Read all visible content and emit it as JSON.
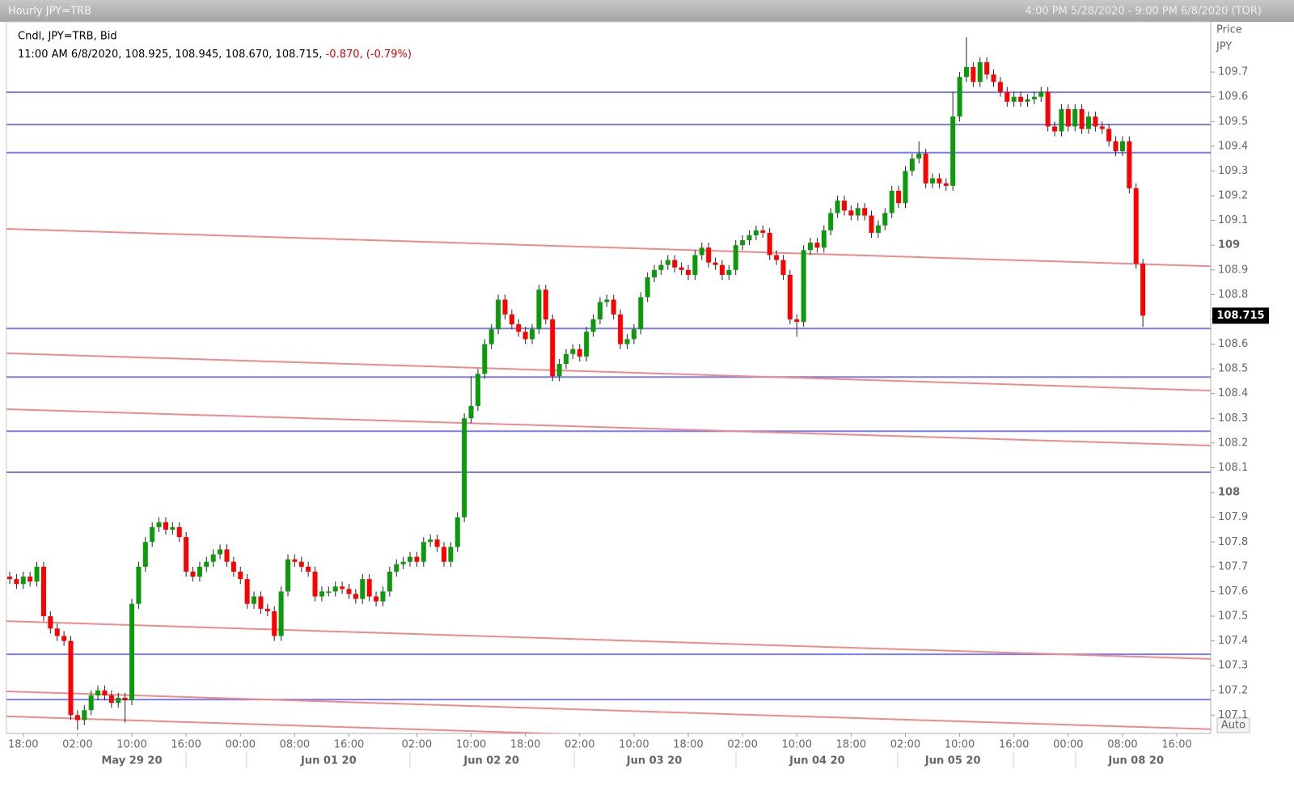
{
  "header": {
    "title": "Hourly JPY=TRB",
    "range": "4:00 PM 5/28/2020 - 9:00 PM 6/8/2020 (TOR)"
  },
  "chart_data": {
    "type": "candlestick",
    "info": {
      "label": "Cndl, JPY=TRB, Bid",
      "quote": "11:00 AM 6/8/2020, 108.925, 108.945, 108.670, 108.715,",
      "change": "-0.870, (-0.79%)"
    },
    "ylabel": "Price",
    "yunit": "JPY",
    "auto_button": "Auto",
    "up_color": "#0a9a0a",
    "down_color": "#ff0000",
    "ylim": [
      107.026,
      109.903
    ],
    "yticks": [
      107.1,
      107.2,
      107.3,
      107.4,
      107.5,
      107.6,
      107.7,
      107.8,
      107.9,
      108,
      108.1,
      108.2,
      108.3,
      108.4,
      108.5,
      108.6,
      108.7,
      108.8,
      108.9,
      109,
      109.1,
      109.2,
      109.3,
      109.4,
      109.5,
      109.6,
      109.7
    ],
    "last_price": 108.715,
    "horizontal_lines": {
      "color": "#7b7bef",
      "values": [
        109.618,
        109.488,
        109.374,
        108.663,
        108.467,
        108.248,
        108.082,
        107.346,
        107.163
      ]
    },
    "trend_lines": {
      "color": "#f08a8a",
      "lines": [
        {
          "start": 109.066,
          "end": 108.915
        },
        {
          "start": 108.563,
          "end": 108.412
        },
        {
          "start": 108.337,
          "end": 108.19
        },
        {
          "start": 107.48,
          "end": 107.327
        },
        {
          "start": 107.196,
          "end": 107.043
        },
        {
          "start": 107.095,
          "end": 106.941
        }
      ]
    },
    "categories": [
      null,
      null,
      "18:00",
      null,
      null,
      null,
      null,
      null,
      null,
      null,
      "02:00",
      null,
      null,
      null,
      null,
      null,
      null,
      null,
      "10:00",
      null,
      null,
      null,
      null,
      null,
      null,
      null,
      "16:00",
      null,
      null,
      null,
      null,
      null,
      null,
      null,
      "00:00",
      null,
      null,
      null,
      null,
      null,
      null,
      null,
      "08:00",
      null,
      null,
      null,
      null,
      null,
      null,
      null,
      "16:00",
      null,
      null,
      null,
      null,
      null,
      null,
      null,
      null,
      null,
      "02:00",
      null,
      null,
      null,
      null,
      null,
      null,
      null,
      "10:00",
      null,
      null,
      null,
      null,
      null,
      null,
      null,
      "18:00",
      null,
      null,
      null,
      null,
      null,
      null,
      null,
      "02:00",
      null,
      null,
      null,
      null,
      null,
      null,
      null,
      "10:00",
      null,
      null,
      null,
      null,
      null,
      null,
      null,
      "18:00",
      null,
      null,
      null,
      null,
      null,
      null,
      null,
      "02:00",
      null,
      null,
      null,
      null,
      null,
      null,
      null,
      "10:00",
      null,
      null,
      null,
      null,
      null,
      null,
      null,
      "18:00",
      null,
      null,
      null,
      null,
      null,
      null,
      null,
      "02:00",
      null,
      null,
      null,
      null,
      null,
      null,
      null,
      "10:00",
      null,
      null,
      null,
      null,
      null,
      null,
      null,
      "16:00",
      null,
      null,
      null,
      null,
      null,
      null,
      null,
      "00:00",
      null,
      null,
      null,
      null,
      null,
      null,
      null,
      "08:00",
      null,
      null,
      null,
      null,
      null,
      null,
      null,
      "16:00",
      null,
      null,
      null,
      null,
      null
    ],
    "day_labels": [
      null,
      null,
      null,
      null,
      null,
      null,
      null,
      null,
      null,
      null,
      null,
      null,
      null,
      null,
      null,
      null,
      null,
      null,
      "May 29 20",
      null,
      null,
      null,
      null,
      null,
      null,
      null,
      null,
      null,
      null,
      null,
      null,
      null,
      null,
      null,
      null,
      null,
      null,
      null,
      null,
      null,
      null,
      null,
      null,
      null,
      null,
      null,
      null,
      "Jun 01 20",
      null,
      null,
      null,
      null,
      null,
      null,
      null,
      null,
      null,
      null,
      null,
      null,
      null,
      null,
      null,
      null,
      null,
      null,
      null,
      null,
      null,
      null,
      null,
      "Jun 02 20",
      null,
      null,
      null,
      null,
      null,
      null,
      null,
      null,
      null,
      null,
      null,
      null,
      null,
      null,
      null,
      null,
      null,
      null,
      null,
      null,
      null,
      null,
      null,
      "Jun 03 20",
      null,
      null,
      null,
      null,
      null,
      null,
      null,
      null,
      null,
      null,
      null,
      null,
      null,
      null,
      null,
      null,
      null,
      null,
      null,
      null,
      null,
      null,
      null,
      "Jun 04 20",
      null,
      null,
      null,
      null,
      null,
      null,
      null,
      null,
      null,
      null,
      null,
      null,
      null,
      null,
      null,
      null,
      null,
      null,
      null,
      "Jun 05 20",
      null,
      null,
      null,
      null,
      null,
      null,
      null,
      null,
      null,
      null,
      null,
      null,
      null,
      null,
      null,
      null,
      null,
      null,
      null,
      null,
      null,
      null,
      null,
      null,
      null,
      null,
      "Jun 08 20",
      null,
      null,
      null,
      null,
      null,
      null,
      null,
      null,
      null,
      null
    ],
    "open": [
      107.66,
      107.65,
      107.63,
      107.66,
      107.64,
      107.7,
      107.5,
      107.45,
      107.42,
      107.4,
      107.1,
      107.08,
      107.12,
      107.18,
      107.2,
      107.18,
      107.15,
      107.17,
      107.16,
      107.55,
      107.7,
      107.8,
      107.86,
      107.88,
      107.85,
      107.86,
      107.82,
      107.68,
      107.66,
      107.7,
      107.72,
      107.75,
      107.77,
      107.72,
      107.68,
      107.65,
      107.55,
      107.58,
      107.53,
      107.52,
      107.42,
      107.6,
      107.73,
      107.72,
      107.7,
      107.68,
      107.58,
      107.6,
      107.6,
      107.62,
      107.61,
      107.59,
      107.57,
      107.65,
      107.58,
      107.56,
      107.6,
      107.68,
      107.71,
      107.72,
      107.74,
      107.72,
      107.8,
      107.81,
      107.78,
      107.72,
      107.78,
      107.9,
      108.3,
      108.35,
      108.48,
      108.6,
      108.66,
      108.78,
      108.72,
      108.68,
      108.65,
      108.62,
      108.66,
      108.82,
      108.7,
      108.47,
      108.52,
      108.56,
      108.58,
      108.55,
      108.65,
      108.7,
      108.77,
      108.78,
      108.72,
      108.6,
      108.62,
      108.66,
      108.79,
      108.87,
      108.9,
      108.92,
      108.94,
      108.91,
      108.9,
      108.88,
      108.96,
      108.99,
      108.93,
      108.92,
      108.88,
      108.9,
      109.0,
      109.02,
      109.04,
      109.06,
      109.05,
      108.96,
      108.94,
      108.88,
      108.7,
      108.69,
      108.98,
      109.01,
      108.99,
      109.06,
      109.13,
      109.18,
      109.14,
      109.12,
      109.15,
      109.12,
      109.05,
      109.08,
      109.13,
      109.22,
      109.17,
      109.3,
      109.35,
      109.37,
      109.25,
      109.27,
      109.25,
      109.24,
      109.52,
      109.68,
      109.72,
      109.66,
      109.74,
      109.69,
      109.66,
      109.62,
      109.58,
      109.6,
      109.58,
      109.59,
      109.6,
      109.62,
      109.48,
      109.46,
      109.55,
      109.48,
      109.55,
      109.47,
      109.52,
      109.48,
      109.47,
      109.42,
      109.38,
      109.42,
      109.23,
      108.925,
      null,
      null,
      null,
      null,
      null,
      null,
      null,
      null,
      null,
      null
    ],
    "high": [
      107.68,
      107.67,
      107.68,
      107.68,
      107.72,
      107.72,
      107.52,
      107.47,
      107.44,
      107.42,
      107.12,
      107.14,
      107.2,
      107.22,
      107.22,
      107.2,
      107.19,
      107.19,
      107.57,
      107.72,
      107.82,
      107.88,
      107.9,
      107.9,
      107.88,
      107.88,
      107.84,
      107.7,
      107.72,
      107.74,
      107.77,
      107.79,
      107.79,
      107.74,
      107.7,
      107.67,
      107.6,
      107.6,
      107.55,
      107.54,
      107.62,
      107.75,
      107.75,
      107.74,
      107.72,
      107.7,
      107.62,
      107.62,
      107.64,
      107.64,
      107.63,
      107.61,
      107.67,
      107.67,
      107.6,
      107.62,
      107.7,
      107.73,
      107.74,
      107.76,
      107.76,
      107.82,
      107.83,
      107.83,
      107.8,
      107.8,
      107.92,
      108.32,
      108.47,
      108.5,
      108.62,
      108.68,
      108.8,
      108.8,
      108.74,
      108.7,
      108.67,
      108.68,
      108.84,
      108.84,
      108.72,
      108.54,
      108.58,
      108.6,
      108.6,
      108.67,
      108.72,
      108.79,
      108.8,
      108.8,
      108.74,
      108.64,
      108.68,
      108.81,
      108.89,
      108.92,
      108.94,
      108.96,
      108.96,
      108.93,
      108.92,
      108.98,
      109.01,
      109.01,
      108.95,
      108.94,
      108.92,
      109.02,
      109.04,
      109.06,
      109.08,
      109.08,
      109.07,
      108.98,
      108.96,
      108.9,
      108.72,
      109.0,
      109.03,
      109.03,
      109.08,
      109.15,
      109.2,
      109.2,
      109.16,
      109.17,
      109.17,
      109.14,
      109.1,
      109.15,
      109.24,
      109.24,
      109.32,
      109.37,
      109.42,
      109.39,
      109.29,
      109.29,
      109.27,
      109.62,
      109.7,
      109.84,
      109.74,
      109.76,
      109.76,
      109.71,
      109.68,
      109.64,
      109.62,
      109.62,
      109.61,
      109.62,
      109.64,
      109.64,
      109.5,
      109.57,
      109.57,
      109.57,
      109.57,
      109.54,
      109.54,
      109.5,
      109.49,
      109.44,
      109.44,
      109.44,
      109.25,
      108.945,
      null,
      null,
      null,
      null,
      null,
      null,
      null,
      null,
      null,
      null
    ],
    "low": [
      107.63,
      107.61,
      107.61,
      107.62,
      107.62,
      107.48,
      107.43,
      107.4,
      107.38,
      107.08,
      107.04,
      107.06,
      107.1,
      107.16,
      107.16,
      107.13,
      107.13,
      107.07,
      107.14,
      107.53,
      107.68,
      107.78,
      107.84,
      107.83,
      107.83,
      107.8,
      107.66,
      107.64,
      107.64,
      107.68,
      107.7,
      107.73,
      107.7,
      107.66,
      107.63,
      107.53,
      107.53,
      107.51,
      107.5,
      107.4,
      107.4,
      107.58,
      107.7,
      107.68,
      107.66,
      107.56,
      107.56,
      107.58,
      107.58,
      107.59,
      107.57,
      107.55,
      107.55,
      107.56,
      107.54,
      107.54,
      107.58,
      107.66,
      107.69,
      107.7,
      107.7,
      107.7,
      107.78,
      107.76,
      107.7,
      107.7,
      107.76,
      107.88,
      108.28,
      108.33,
      108.46,
      108.58,
      108.64,
      108.7,
      108.66,
      108.63,
      108.6,
      108.6,
      108.64,
      108.68,
      108.45,
      108.45,
      108.5,
      108.54,
      108.53,
      108.53,
      108.63,
      108.68,
      108.75,
      108.7,
      108.58,
      108.58,
      108.6,
      108.64,
      108.77,
      108.85,
      108.88,
      108.9,
      108.89,
      108.88,
      108.86,
      108.86,
      108.94,
      108.91,
      108.9,
      108.86,
      108.86,
      108.88,
      108.98,
      109.0,
      109.02,
      109.03,
      108.94,
      108.92,
      108.86,
      108.68,
      108.63,
      108.67,
      108.96,
      108.97,
      108.97,
      109.04,
      109.11,
      109.12,
      109.1,
      109.1,
      109.1,
      109.03,
      109.03,
      109.06,
      109.11,
      109.15,
      109.15,
      109.28,
      109.33,
      109.23,
      109.23,
      109.23,
      109.22,
      109.22,
      109.5,
      109.66,
      109.64,
      109.64,
      109.67,
      109.64,
      109.6,
      109.56,
      109.56,
      109.56,
      109.56,
      109.57,
      109.58,
      109.46,
      109.44,
      109.44,
      109.46,
      109.46,
      109.45,
      109.45,
      109.46,
      109.45,
      109.4,
      109.36,
      109.36,
      109.21,
      108.905,
      108.67,
      null,
      null,
      null,
      null,
      null,
      null,
      null,
      null,
      null,
      null
    ],
    "close": [
      107.65,
      107.63,
      107.66,
      107.64,
      107.7,
      107.5,
      107.45,
      107.42,
      107.4,
      107.1,
      107.08,
      107.12,
      107.18,
      107.2,
      107.18,
      107.15,
      107.17,
      107.16,
      107.55,
      107.7,
      107.8,
      107.86,
      107.88,
      107.85,
      107.86,
      107.82,
      107.68,
      107.66,
      107.7,
      107.72,
      107.75,
      107.77,
      107.72,
      107.68,
      107.65,
      107.55,
      107.58,
      107.53,
      107.52,
      107.42,
      107.6,
      107.73,
      107.72,
      107.7,
      107.68,
      107.58,
      107.6,
      107.6,
      107.62,
      107.61,
      107.59,
      107.57,
      107.65,
      107.58,
      107.56,
      107.6,
      107.68,
      107.71,
      107.72,
      107.74,
      107.72,
      107.8,
      107.81,
      107.78,
      107.72,
      107.78,
      107.9,
      108.3,
      108.35,
      108.48,
      108.6,
      108.66,
      108.78,
      108.72,
      108.68,
      108.65,
      108.62,
      108.66,
      108.82,
      108.7,
      108.47,
      108.52,
      108.56,
      108.58,
      108.55,
      108.65,
      108.7,
      108.77,
      108.78,
      108.72,
      108.6,
      108.62,
      108.66,
      108.79,
      108.87,
      108.9,
      108.92,
      108.94,
      108.91,
      108.9,
      108.88,
      108.96,
      108.99,
      108.93,
      108.92,
      108.88,
      108.9,
      109.0,
      109.02,
      109.04,
      109.06,
      109.05,
      108.96,
      108.94,
      108.88,
      108.7,
      108.69,
      108.98,
      109.01,
      108.99,
      109.06,
      109.13,
      109.18,
      109.14,
      109.12,
      109.15,
      109.12,
      109.05,
      109.08,
      109.13,
      109.22,
      109.17,
      109.3,
      109.35,
      109.37,
      109.25,
      109.27,
      109.25,
      109.24,
      109.52,
      109.68,
      109.72,
      109.66,
      109.74,
      109.69,
      109.66,
      109.62,
      109.58,
      109.6,
      109.58,
      109.59,
      109.6,
      109.62,
      109.48,
      109.46,
      109.55,
      109.48,
      109.55,
      109.47,
      109.52,
      109.48,
      109.47,
      109.42,
      109.38,
      109.42,
      109.23,
      108.925,
      108.715,
      null,
      null,
      null,
      null,
      null,
      null,
      null,
      null,
      null,
      null
    ]
  }
}
